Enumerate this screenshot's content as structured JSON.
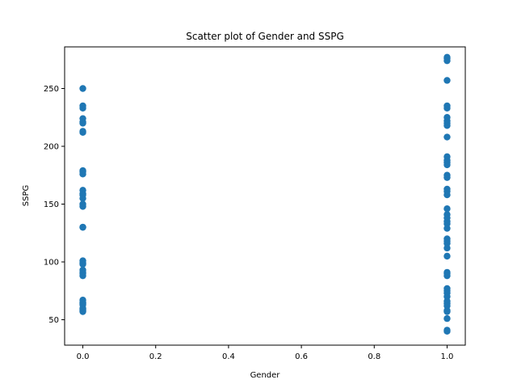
{
  "chart_data": {
    "type": "scatter",
    "title": "Scatter plot of Gender and SSPG",
    "xlabel": "Gender",
    "ylabel": "SSPG",
    "xlim": [
      -0.05,
      1.05
    ],
    "ylim": [
      28,
      286
    ],
    "xticks": [
      0.0,
      0.2,
      0.4,
      0.6,
      0.8,
      1.0
    ],
    "xtick_labels": [
      "0.0",
      "0.2",
      "0.4",
      "0.6",
      "0.8",
      "1.0"
    ],
    "yticks": [
      50,
      100,
      150,
      200,
      250
    ],
    "ytick_labels": [
      "50",
      "100",
      "150",
      "200",
      "250"
    ],
    "grid": false,
    "point_color": "#1f77b4",
    "series": [
      {
        "x": [
          0,
          0,
          0,
          0,
          0,
          0,
          0,
          0,
          0,
          0,
          0,
          0,
          0,
          0,
          0,
          0,
          0,
          0,
          0,
          0,
          0,
          0,
          0,
          0,
          0,
          0,
          0,
          0,
          0,
          0,
          0,
          0,
          0,
          0
        ],
        "y": [
          250,
          235,
          233,
          224,
          221,
          220,
          213,
          212,
          179,
          178,
          176,
          162,
          159,
          158,
          155,
          150,
          148,
          130,
          130,
          101,
          99,
          98,
          93,
          91,
          90,
          88,
          67,
          65,
          64,
          63,
          60,
          58,
          57,
          59
        ]
      },
      {
        "x": [
          1,
          1,
          1,
          1,
          1,
          1,
          1,
          1,
          1,
          1,
          1,
          1,
          1,
          1,
          1,
          1,
          1,
          1,
          1,
          1,
          1,
          1,
          1,
          1,
          1,
          1,
          1,
          1,
          1,
          1,
          1,
          1,
          1,
          1,
          1,
          1,
          1,
          1,
          1,
          1,
          1,
          1,
          1,
          1,
          1,
          1
        ],
        "y": [
          277,
          276,
          274,
          257,
          235,
          233,
          225,
          222,
          220,
          218,
          191,
          188,
          186,
          184,
          175,
          173,
          163,
          161,
          158,
          141,
          138,
          135,
          133,
          129,
          120,
          118,
          116,
          112,
          105,
          91,
          90,
          77,
          75,
          73,
          70,
          66,
          64,
          62,
          58,
          57,
          51,
          41,
          40,
          88,
          146,
          208
        ]
      }
    ]
  }
}
